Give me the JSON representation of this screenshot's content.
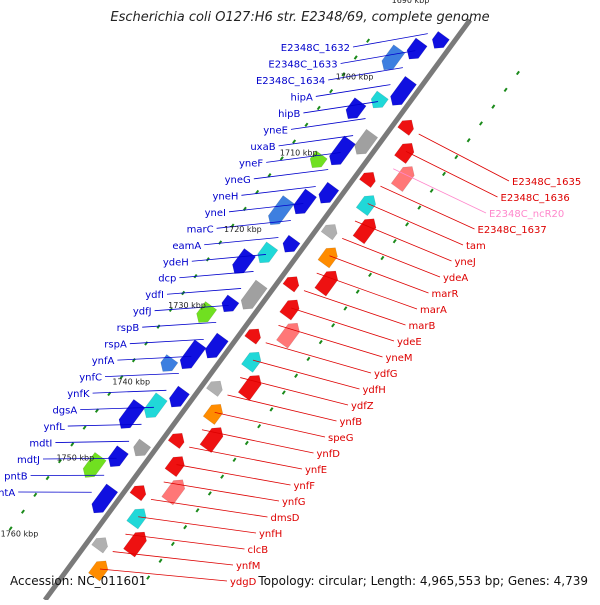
{
  "title": "Escherichia coli O127:H6 str. E2348/69, complete genome",
  "footer": {
    "accession": "Accession: NC_011601",
    "summary": "Topology: circular; Length: 4,965,553 bp; Genes: 4,739"
  },
  "colors": {
    "forward_label": "#0000cc",
    "reverse_label": "#dd0000",
    "ncrna_label": "#ff88cc",
    "backbone": "#7a7a7a",
    "tick_dot": "#1a8a1a"
  },
  "kbp_ticks": [
    "1690 kbp",
    "1700 kbp",
    "1710 kbp",
    "1720 kbp",
    "1730 kbp",
    "1740 kbp",
    "1750 kbp",
    "1760 kbp"
  ],
  "forward_genes": [
    "E2348C_1632",
    "E2348C_1633",
    "E2348C_1634",
    "hipA",
    "hipB",
    "yneE",
    "uxaB",
    "yneF",
    "yneG",
    "yneH",
    "yneI",
    "marC",
    "eamA",
    "ydeH",
    "dcp",
    "ydfI",
    "ydfJ",
    "rspB",
    "rspA",
    "ynfA",
    "ynfC",
    "ynfK",
    "dgsA",
    "ynfL",
    "mdtI",
    "mdtJ",
    "pntB",
    "pntA"
  ],
  "reverse_genes": [
    "E2348C_1635",
    "E2348C_1636",
    "E2348C_ncR20",
    "E2348C_1637",
    "tam",
    "yneJ",
    "ydeA",
    "marR",
    "marA",
    "marB",
    "ydeE",
    "yneM",
    "ydfG",
    "ydfH",
    "ydfZ",
    "ynfB",
    "speG",
    "ynfD",
    "ynfE",
    "ynfF",
    "ynfG",
    "dmsD",
    "ynfH",
    "clcB",
    "ynfM",
    "ydgD"
  ]
}
